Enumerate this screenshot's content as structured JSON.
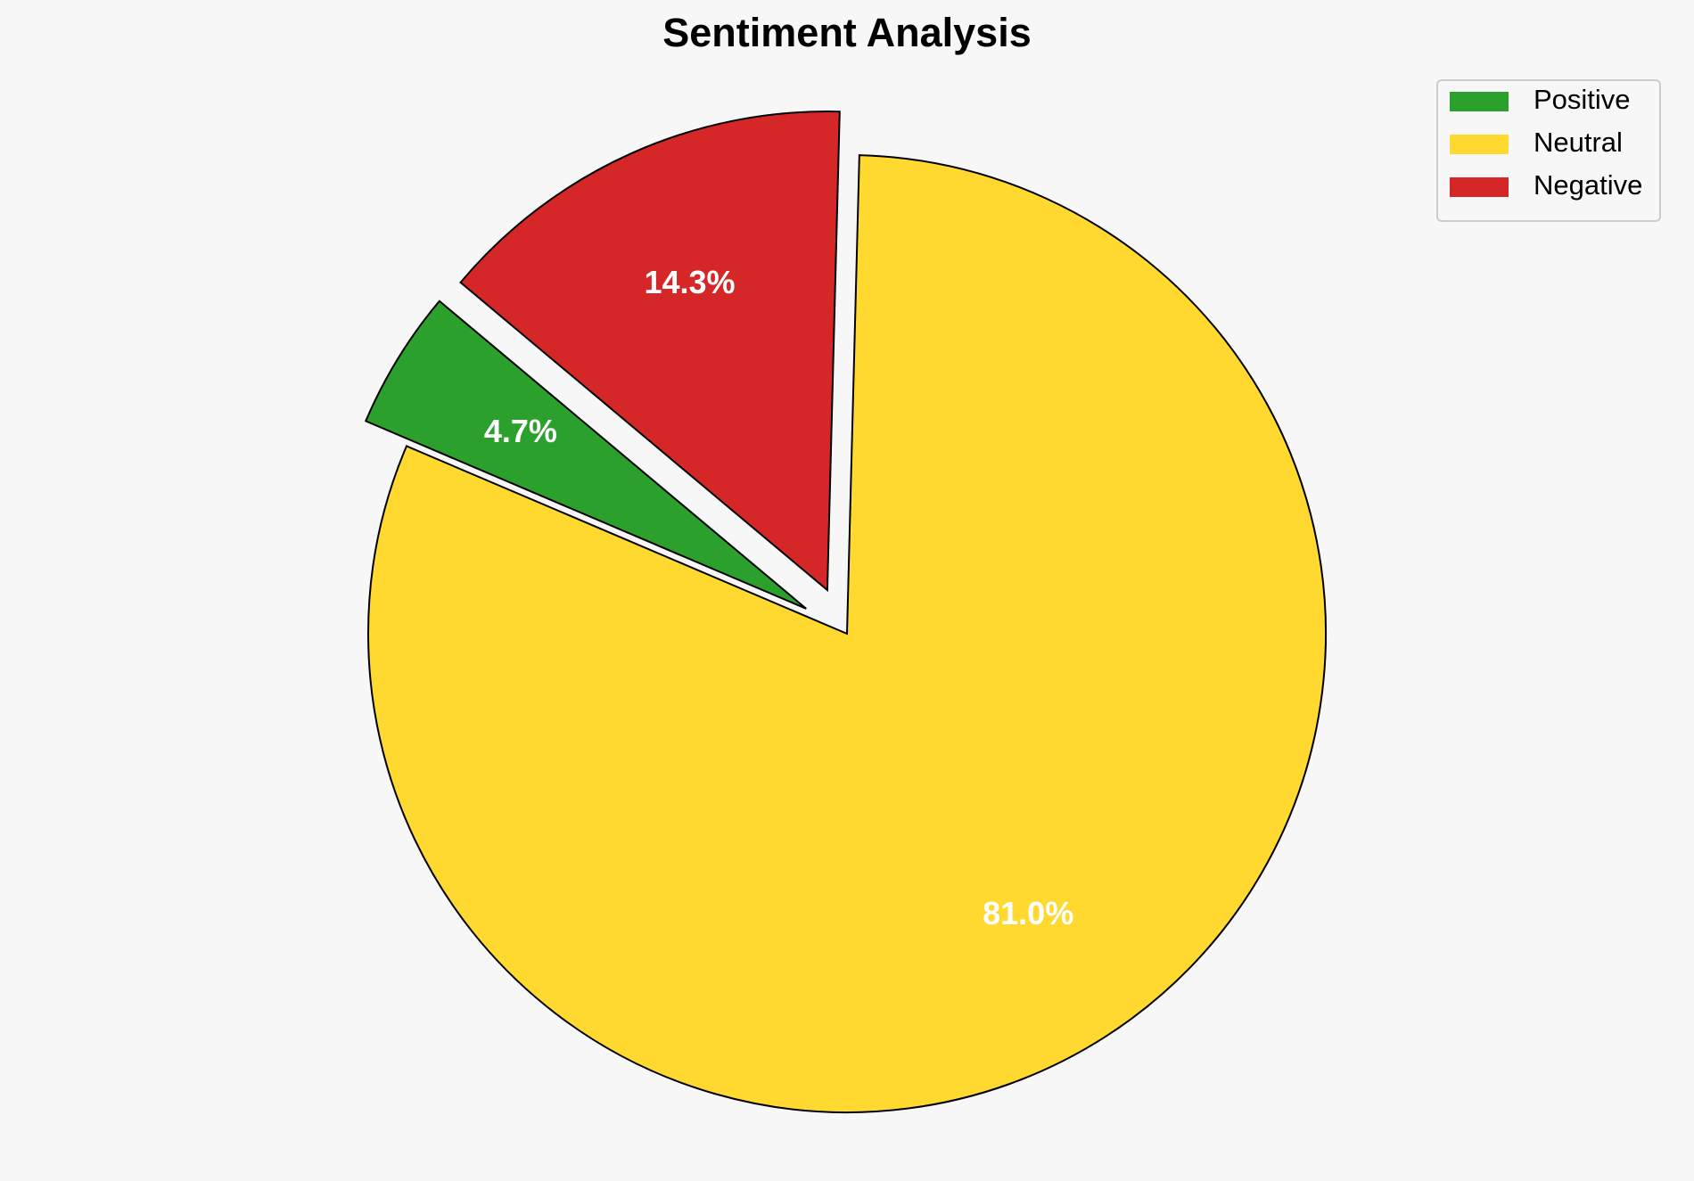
{
  "chart_data": {
    "type": "pie",
    "title": "Sentiment Analysis",
    "categories": [
      "Positive",
      "Neutral",
      "Negative"
    ],
    "values": [
      4.7,
      81.0,
      14.3
    ],
    "value_labels": [
      "4.7%",
      "81.0%",
      "14.3%"
    ],
    "colors": [
      "#2ca02c",
      "#ffd92f",
      "#d62728"
    ],
    "startangle": 140,
    "explode": [
      0.1,
      0,
      0.1
    ],
    "legend": "upper right"
  }
}
